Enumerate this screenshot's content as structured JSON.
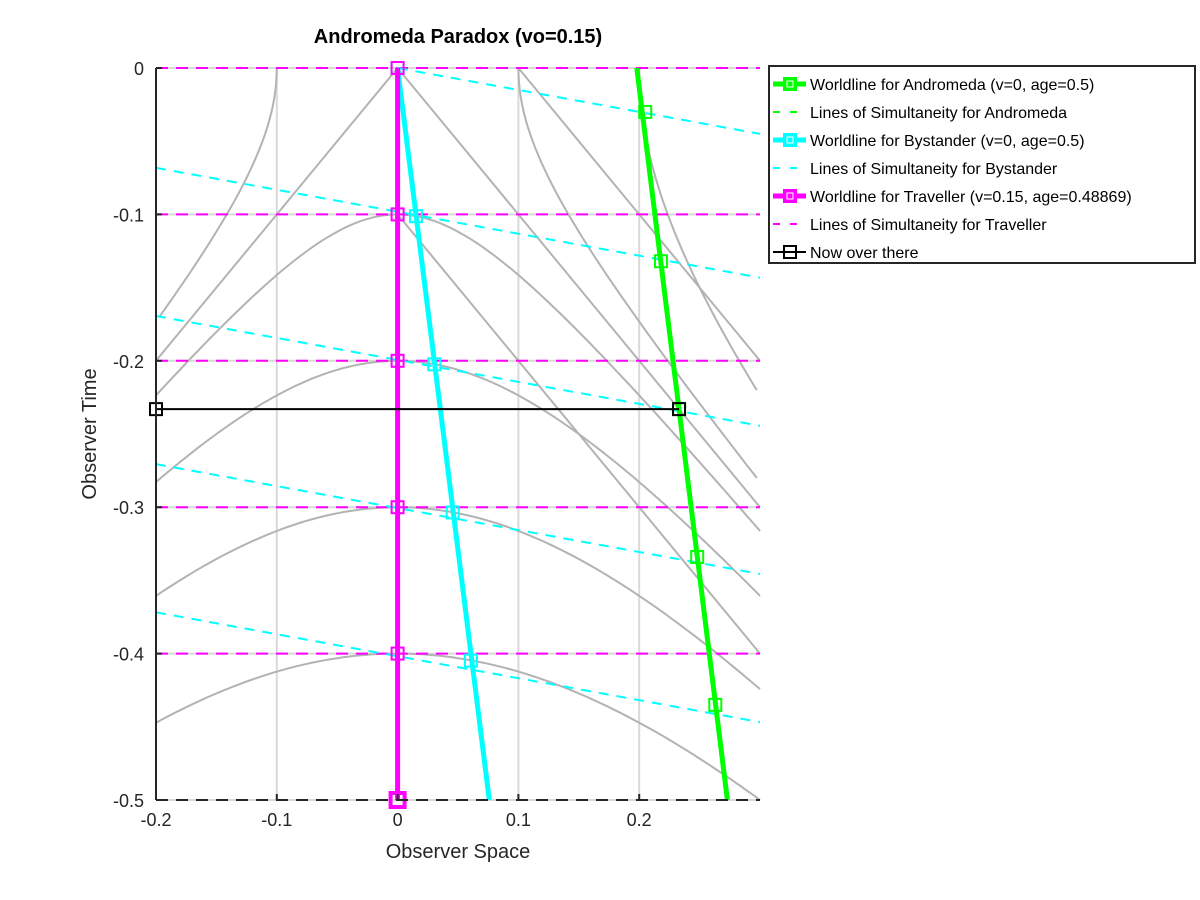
{
  "chart_data": {
    "type": "line",
    "title": "Andromeda Paradox (vo=0.15)",
    "xlabel": "Observer Space",
    "ylabel": "Observer Time",
    "xlim": [
      -0.2,
      0.3
    ],
    "ylim": [
      -0.5,
      0
    ],
    "xticks": [
      -0.2,
      -0.1,
      0,
      0.1,
      0.2
    ],
    "xtick_labels": [
      "-0.2",
      "-0.1",
      "0",
      "0.1",
      "0.2"
    ],
    "yticks": [
      0,
      -0.1,
      -0.2,
      -0.3,
      -0.4,
      -0.5
    ],
    "ytick_labels": [
      "0",
      "-0.1",
      "-0.2",
      "-0.3",
      "-0.4",
      "-0.5"
    ],
    "grid": true,
    "legend_position": "outside-top-right",
    "colors": {
      "andromeda": "#00ff00",
      "bystander": "#00ffff",
      "traveller": "#ff00ff",
      "now": "#000000",
      "hyperbola": "#b3b3b3",
      "grid": "#d9d9d9"
    },
    "series": [
      {
        "name": "Worldline for Andromeda (v=0, age=0.5)",
        "style": "solid-thick-markers",
        "color": "#00ff00",
        "x": [
          0.198,
          0.273
        ],
        "y": [
          0,
          -0.5
        ],
        "markers": [
          [
            0.205,
            -0.03
          ],
          [
            0.218,
            -0.132
          ],
          [
            0.233,
            -0.233
          ],
          [
            0.248,
            -0.334
          ],
          [
            0.263,
            -0.435
          ]
        ]
      },
      {
        "name": "Lines of Simultaneity for Andromeda",
        "style": "dashed",
        "color": "#00ff00",
        "lines": []
      },
      {
        "name": "Worldline for Bystander (v=0, age=0.5)",
        "style": "solid-thick-markers",
        "color": "#00ffff",
        "x": [
          0,
          0.0759
        ],
        "y": [
          0,
          -0.5
        ],
        "markers": [
          [
            0,
            0
          ],
          [
            0.0152,
            -0.1012
          ],
          [
            0.0304,
            -0.2024
          ],
          [
            0.0456,
            -0.3036
          ],
          [
            0.0607,
            -0.4048
          ]
        ]
      },
      {
        "name": "Lines of Simultaneity for Bystander",
        "style": "dashed",
        "color": "#00ffff",
        "slope": -0.15,
        "lines": [
          {
            "x": [
              0,
              0.3
            ],
            "y": [
              0,
              -0.045
            ]
          },
          {
            "x": [
              -0.2,
              0.3
            ],
            "y": [
              -0.0682,
              -0.1432
            ]
          },
          {
            "x": [
              -0.2,
              0.3
            ],
            "y": [
              -0.1694,
              -0.2444
            ]
          },
          {
            "x": [
              -0.2,
              0.3
            ],
            "y": [
              -0.2706,
              -0.3456
            ]
          },
          {
            "x": [
              -0.2,
              0.3
            ],
            "y": [
              -0.3718,
              -0.4468
            ]
          }
        ]
      },
      {
        "name": "Worldline for Traveller (v=0.15, age=0.48869)",
        "style": "solid-thick-markers",
        "color": "#ff00ff",
        "x": [
          0,
          0
        ],
        "y": [
          0,
          -0.5
        ],
        "markers": [
          [
            0,
            0
          ],
          [
            0,
            -0.1
          ],
          [
            0,
            -0.2
          ],
          [
            0,
            -0.3
          ],
          [
            0,
            -0.4
          ],
          [
            0,
            -0.5
          ]
        ]
      },
      {
        "name": "Lines of Simultaneity for Traveller",
        "style": "dashed",
        "color": "#ff00ff",
        "lines": [
          {
            "x": [
              -0.2,
              0.3
            ],
            "y": [
              0,
              0
            ]
          },
          {
            "x": [
              -0.2,
              0.3
            ],
            "y": [
              -0.1,
              -0.1
            ]
          },
          {
            "x": [
              -0.2,
              0.3
            ],
            "y": [
              -0.2,
              -0.2
            ]
          },
          {
            "x": [
              -0.2,
              0.3
            ],
            "y": [
              -0.3,
              -0.3
            ]
          },
          {
            "x": [
              -0.2,
              0.3
            ],
            "y": [
              -0.4,
              -0.4
            ]
          },
          {
            "x": [
              -0.2,
              0.3
            ],
            "y": [
              -0.5,
              -0.5
            ]
          }
        ]
      },
      {
        "name": "Now over there",
        "style": "solid-thin-markers",
        "color": "#000000",
        "x": [
          -0.2,
          0.233
        ],
        "y": [
          -0.233,
          -0.233
        ]
      }
    ],
    "legend": [
      "Worldline for Andromeda (v=0, age=0.5)",
      "Lines of Simultaneity for Andromeda",
      "Worldline for Bystander (v=0, age=0.5)",
      "Lines of Simultaneity for Bystander",
      "Worldline for Traveller (v=0.15, age=0.48869)",
      "Lines of Simultaneity for Traveller",
      "Now over there"
    ]
  }
}
